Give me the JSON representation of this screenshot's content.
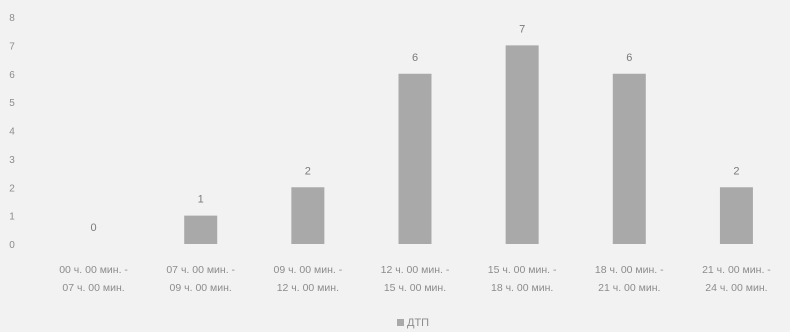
{
  "chart_data": {
    "type": "bar",
    "categories": [
      [
        "00 ч. 00 мин. -",
        "07 ч. 00 мин."
      ],
      [
        "07 ч. 00 мин. -",
        "09 ч. 00 мин."
      ],
      [
        "09 ч. 00 мин. -",
        "12 ч. 00 мин."
      ],
      [
        "12 ч. 00 мин. -",
        "15 ч. 00 мин."
      ],
      [
        "15 ч. 00 мин. -",
        "18 ч. 00 мин."
      ],
      [
        "18 ч. 00 мин. -",
        "21 ч. 00 мин."
      ],
      [
        "21 ч. 00 мин. -",
        "24 ч. 00 мин."
      ]
    ],
    "series": [
      {
        "name": "ДТП",
        "values": [
          0,
          1,
          2,
          6,
          7,
          6,
          2
        ]
      }
    ],
    "ylim": [
      0,
      8
    ],
    "yticks": [
      "0",
      "1",
      "2",
      "3",
      "4",
      "5",
      "6",
      "7",
      "8"
    ],
    "title": "",
    "xlabel": "",
    "ylabel": "",
    "grid": false,
    "legend": "bottom",
    "colors": {
      "bar": "#a9a9a9",
      "background": "#f2f2f2",
      "text": "#8c8c8c",
      "value_label": "#7a7a7a"
    }
  }
}
